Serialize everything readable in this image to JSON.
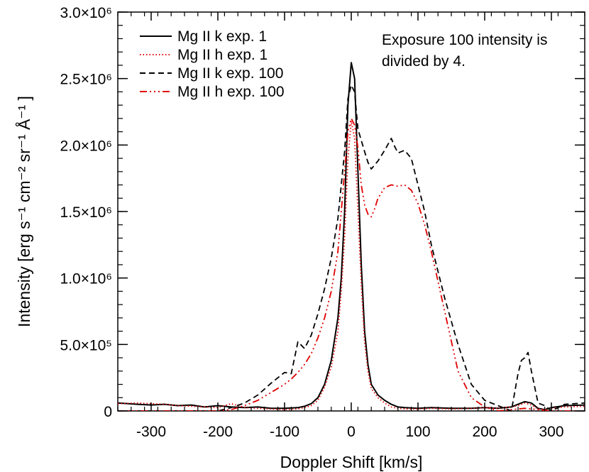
{
  "chart_data": {
    "type": "line",
    "xlabel": "Doppler Shift [km/s]",
    "ylabel": "Intensity [erg s⁻¹ cm⁻² sr⁻¹ Å⁻¹ ]",
    "xlim": [
      -350,
      350
    ],
    "ylim": [
      0,
      3000000
    ],
    "x_ticks": [
      -300,
      -200,
      -100,
      0,
      100,
      200,
      300
    ],
    "x_tick_labels": [
      "-300",
      "-200",
      "-100",
      "0",
      "100",
      "200",
      "300"
    ],
    "y_ticks": [
      0,
      500000,
      1000000,
      1500000,
      2000000,
      2500000,
      3000000
    ],
    "y_tick_labels": [
      "0",
      "5.0×10⁵",
      "1.0×10⁶",
      "1.5×10⁶",
      "2.0×10⁶",
      "2.5×10⁶",
      "3.0×10⁶"
    ],
    "legend_position": "top-left",
    "annotation": [
      "Exposure 100 intensity is",
      "divided by 4."
    ],
    "grid": false,
    "series": [
      {
        "name": "Mg II k exp. 1",
        "color": "#000000",
        "dash": "solid",
        "x": [
          -350,
          -320,
          -300,
          -280,
          -260,
          -240,
          -220,
          -200,
          -180,
          -160,
          -140,
          -120,
          -100,
          -80,
          -70,
          -60,
          -50,
          -40,
          -30,
          -20,
          -15,
          -10,
          -5,
          0,
          5,
          10,
          15,
          20,
          25,
          30,
          40,
          50,
          60,
          70,
          80,
          100,
          120,
          150,
          180,
          200,
          220,
          240,
          250,
          260,
          270,
          280,
          290,
          300,
          320,
          350
        ],
        "y": [
          60000,
          50000,
          45000,
          50000,
          40000,
          45000,
          30000,
          40000,
          30000,
          25000,
          30000,
          20000,
          20000,
          25000,
          35000,
          55000,
          100000,
          200000,
          380000,
          700000,
          1000000,
          1500000,
          2300000,
          2620000,
          2500000,
          1800000,
          1100000,
          600000,
          350000,
          200000,
          120000,
          80000,
          50000,
          30000,
          25000,
          20000,
          25000,
          20000,
          20000,
          25000,
          20000,
          30000,
          50000,
          70000,
          60000,
          20000,
          10000,
          25000,
          40000,
          45000
        ]
      },
      {
        "name": "Mg II h exp. 1",
        "color": "#e00000",
        "dash": "dotted",
        "x": [
          -350,
          -320,
          -300,
          -280,
          -260,
          -240,
          -220,
          -200,
          -180,
          -160,
          -140,
          -120,
          -100,
          -80,
          -70,
          -60,
          -50,
          -40,
          -30,
          -20,
          -15,
          -10,
          -5,
          0,
          5,
          10,
          15,
          20,
          25,
          30,
          40,
          50,
          60,
          70,
          80,
          100,
          120,
          150,
          180,
          200,
          220,
          240,
          250,
          260,
          270,
          280,
          290,
          300,
          320,
          350
        ],
        "y": [
          55000,
          60000,
          55000,
          50000,
          40000,
          35000,
          30000,
          25000,
          55000,
          25000,
          20000,
          15000,
          10000,
          15000,
          25000,
          40000,
          80000,
          180000,
          330000,
          600000,
          900000,
          1300000,
          1900000,
          2180000,
          2050000,
          1500000,
          950000,
          520000,
          300000,
          170000,
          100000,
          60000,
          30000,
          20000,
          15000,
          15000,
          20000,
          15000,
          20000,
          25000,
          20000,
          30000,
          40000,
          60000,
          45000,
          15000,
          10000,
          20000,
          30000,
          35000
        ]
      },
      {
        "name": "Mg II k exp. 100",
        "color": "#000000",
        "dash": "dashed",
        "x": [
          -350,
          -320,
          -300,
          -280,
          -260,
          -240,
          -220,
          -200,
          -180,
          -160,
          -140,
          -120,
          -110,
          -100,
          -90,
          -85,
          -80,
          -70,
          -60,
          -50,
          -40,
          -30,
          -20,
          -10,
          -5,
          0,
          5,
          10,
          20,
          25,
          30,
          40,
          50,
          60,
          65,
          70,
          80,
          90,
          100,
          110,
          120,
          140,
          160,
          180,
          200,
          220,
          240,
          250,
          255,
          260,
          265,
          270,
          280,
          290,
          300,
          320,
          350
        ],
        "y": [
          0,
          0,
          0,
          0,
          0,
          0,
          0,
          0,
          25000,
          60000,
          120000,
          210000,
          250000,
          290000,
          280000,
          400000,
          520000,
          470000,
          570000,
          730000,
          920000,
          1150000,
          1450000,
          1950000,
          2350000,
          2450000,
          2400000,
          2120000,
          1950000,
          1870000,
          1820000,
          1880000,
          1960000,
          2050000,
          1990000,
          1940000,
          1960000,
          1900000,
          1700000,
          1500000,
          1250000,
          850000,
          500000,
          200000,
          80000,
          40000,
          0,
          280000,
          380000,
          400000,
          440000,
          300000,
          60000,
          40000,
          0,
          50000,
          60000
        ]
      },
      {
        "name": "Mg II h exp. 100",
        "color": "#e00000",
        "dash": "dashdotdotdot",
        "x": [
          -350,
          -320,
          -300,
          -280,
          -260,
          -240,
          -220,
          -200,
          -180,
          -160,
          -140,
          -120,
          -100,
          -90,
          -80,
          -70,
          -60,
          -50,
          -40,
          -30,
          -20,
          -10,
          -5,
          0,
          5,
          10,
          15,
          20,
          25,
          30,
          35,
          40,
          50,
          60,
          70,
          80,
          90,
          100,
          110,
          120,
          140,
          160,
          180,
          200,
          220,
          240,
          260,
          280,
          300,
          320,
          350
        ],
        "y": [
          0,
          0,
          0,
          0,
          0,
          0,
          0,
          0,
          10000,
          40000,
          80000,
          140000,
          200000,
          240000,
          290000,
          350000,
          430000,
          550000,
          700000,
          900000,
          1200000,
          1800000,
          2100000,
          2200000,
          2150000,
          1980000,
          1700000,
          1550000,
          1480000,
          1460000,
          1520000,
          1600000,
          1680000,
          1700000,
          1690000,
          1700000,
          1660000,
          1560000,
          1400000,
          1200000,
          750000,
          300000,
          100000,
          30000,
          0,
          10000,
          20000,
          10000,
          0,
          0,
          0
        ]
      }
    ]
  }
}
